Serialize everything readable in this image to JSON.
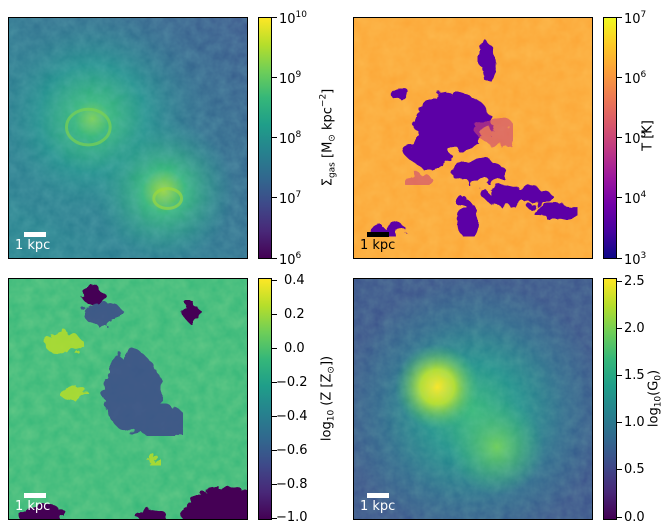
{
  "panels": [
    {
      "id": "gas",
      "scalebar_label": "1 kpc",
      "scalebar_color": "#ffffff",
      "colormap": "viridis",
      "colorbar": {
        "label_text": "Σgas [M⊙ kpc−2]",
        "label_main": "Σ",
        "label_sub": "gas",
        "label_rest": " [M",
        "label_sun": "⊙",
        "label_end": " kpc",
        "label_exp": "−2",
        "label_close": "]",
        "ticks": [
          {
            "base": "10",
            "exp": "10"
          },
          {
            "base": "10",
            "exp": "9"
          },
          {
            "base": "10",
            "exp": "8"
          },
          {
            "base": "10",
            "exp": "7"
          },
          {
            "base": "10",
            "exp": "6"
          }
        ]
      }
    },
    {
      "id": "temperature",
      "scalebar_label": "1 kpc",
      "scalebar_color": "#000000",
      "colormap": "plasma",
      "colorbar": {
        "label_text": "T [K]",
        "ticks": [
          {
            "base": "10",
            "exp": "7"
          },
          {
            "base": "10",
            "exp": "6"
          },
          {
            "base": "10",
            "exp": "5"
          },
          {
            "base": "10",
            "exp": "4"
          },
          {
            "base": "10",
            "exp": "3"
          }
        ]
      }
    },
    {
      "id": "metallicity",
      "scalebar_label": "1 kpc",
      "scalebar_color": "#ffffff",
      "colormap": "viridis",
      "colorbar": {
        "label_log": "log",
        "label_log_sub": "10",
        "label_rest": " (Z [Z",
        "label_sun": "⊙",
        "label_close": "])",
        "ticks": [
          "0.4",
          "0.2",
          "0.0",
          "−0.2",
          "−0.4",
          "−0.6",
          "−0.8",
          "−1.0"
        ]
      }
    },
    {
      "id": "radiation",
      "scalebar_label": "1 kpc",
      "scalebar_color": "#ffffff",
      "colormap": "viridis",
      "colorbar": {
        "label_log": "log",
        "label_log_sub": "10",
        "label_rest": "(G",
        "label_sub0": "0",
        "label_close": ")",
        "ticks": [
          "2.5",
          "2.0",
          "1.5",
          "1.0",
          "0.5",
          "0.0"
        ]
      }
    }
  ]
}
